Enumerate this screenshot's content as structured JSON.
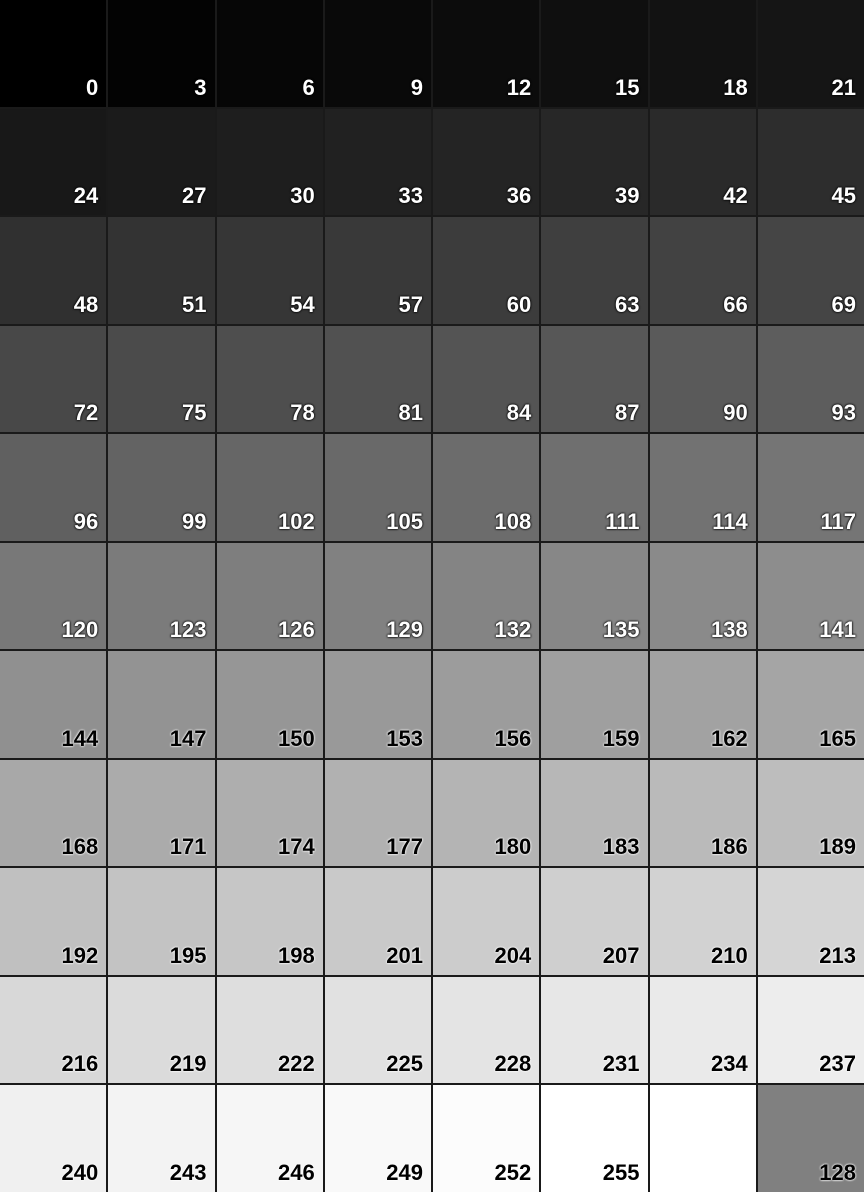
{
  "grid": {
    "columns": 8,
    "rows": 11,
    "cells": [
      {
        "value": 0,
        "label": "0"
      },
      {
        "value": 3,
        "label": "3"
      },
      {
        "value": 6,
        "label": "6"
      },
      {
        "value": 9,
        "label": "9"
      },
      {
        "value": 12,
        "label": "12"
      },
      {
        "value": 15,
        "label": "15"
      },
      {
        "value": 18,
        "label": "18"
      },
      {
        "value": 21,
        "label": "21"
      },
      {
        "value": 24,
        "label": "24"
      },
      {
        "value": 27,
        "label": "27"
      },
      {
        "value": 30,
        "label": "30"
      },
      {
        "value": 33,
        "label": "33"
      },
      {
        "value": 36,
        "label": "36"
      },
      {
        "value": 39,
        "label": "39"
      },
      {
        "value": 42,
        "label": "42"
      },
      {
        "value": 45,
        "label": "45"
      },
      {
        "value": 48,
        "label": "48"
      },
      {
        "value": 51,
        "label": "51"
      },
      {
        "value": 54,
        "label": "54"
      },
      {
        "value": 57,
        "label": "57"
      },
      {
        "value": 60,
        "label": "60"
      },
      {
        "value": 63,
        "label": "63"
      },
      {
        "value": 66,
        "label": "66"
      },
      {
        "value": 69,
        "label": "69"
      },
      {
        "value": 72,
        "label": "72"
      },
      {
        "value": 75,
        "label": "75"
      },
      {
        "value": 78,
        "label": "78"
      },
      {
        "value": 81,
        "label": "81"
      },
      {
        "value": 84,
        "label": "84"
      },
      {
        "value": 87,
        "label": "87"
      },
      {
        "value": 90,
        "label": "90"
      },
      {
        "value": 93,
        "label": "93"
      },
      {
        "value": 96,
        "label": "96"
      },
      {
        "value": 99,
        "label": "99"
      },
      {
        "value": 102,
        "label": "102"
      },
      {
        "value": 105,
        "label": "105"
      },
      {
        "value": 108,
        "label": "108"
      },
      {
        "value": 111,
        "label": "111"
      },
      {
        "value": 114,
        "label": "114"
      },
      {
        "value": 117,
        "label": "117"
      },
      {
        "value": 120,
        "label": "120"
      },
      {
        "value": 123,
        "label": "123"
      },
      {
        "value": 126,
        "label": "126"
      },
      {
        "value": 129,
        "label": "129"
      },
      {
        "value": 132,
        "label": "132"
      },
      {
        "value": 135,
        "label": "135"
      },
      {
        "value": 138,
        "label": "138"
      },
      {
        "value": 141,
        "label": "141"
      },
      {
        "value": 144,
        "label": "144"
      },
      {
        "value": 147,
        "label": "147"
      },
      {
        "value": 150,
        "label": "150"
      },
      {
        "value": 153,
        "label": "153"
      },
      {
        "value": 156,
        "label": "156"
      },
      {
        "value": 159,
        "label": "159"
      },
      {
        "value": 162,
        "label": "162"
      },
      {
        "value": 165,
        "label": "165"
      },
      {
        "value": 168,
        "label": "168"
      },
      {
        "value": 171,
        "label": "171"
      },
      {
        "value": 174,
        "label": "174"
      },
      {
        "value": 177,
        "label": "177"
      },
      {
        "value": 180,
        "label": "180"
      },
      {
        "value": 183,
        "label": "183"
      },
      {
        "value": 186,
        "label": "186"
      },
      {
        "value": 189,
        "label": "189"
      },
      {
        "value": 192,
        "label": "192"
      },
      {
        "value": 195,
        "label": "195"
      },
      {
        "value": 198,
        "label": "198"
      },
      {
        "value": 201,
        "label": "201"
      },
      {
        "value": 204,
        "label": "204"
      },
      {
        "value": 207,
        "label": "207"
      },
      {
        "value": 210,
        "label": "210"
      },
      {
        "value": 213,
        "label": "213"
      },
      {
        "value": 216,
        "label": "216"
      },
      {
        "value": 219,
        "label": "219"
      },
      {
        "value": 222,
        "label": "222"
      },
      {
        "value": 225,
        "label": "225"
      },
      {
        "value": 228,
        "label": "228"
      },
      {
        "value": 231,
        "label": "231"
      },
      {
        "value": 234,
        "label": "234"
      },
      {
        "value": 237,
        "label": "237"
      },
      {
        "value": 240,
        "label": "240"
      },
      {
        "value": 243,
        "label": "243"
      },
      {
        "value": 246,
        "label": "246"
      },
      {
        "value": 249,
        "label": "249"
      },
      {
        "value": 252,
        "label": "252"
      },
      {
        "value": 255,
        "label": "255"
      },
      {
        "value": 255,
        "label": ""
      },
      {
        "value": 128,
        "label": "128"
      }
    ]
  }
}
